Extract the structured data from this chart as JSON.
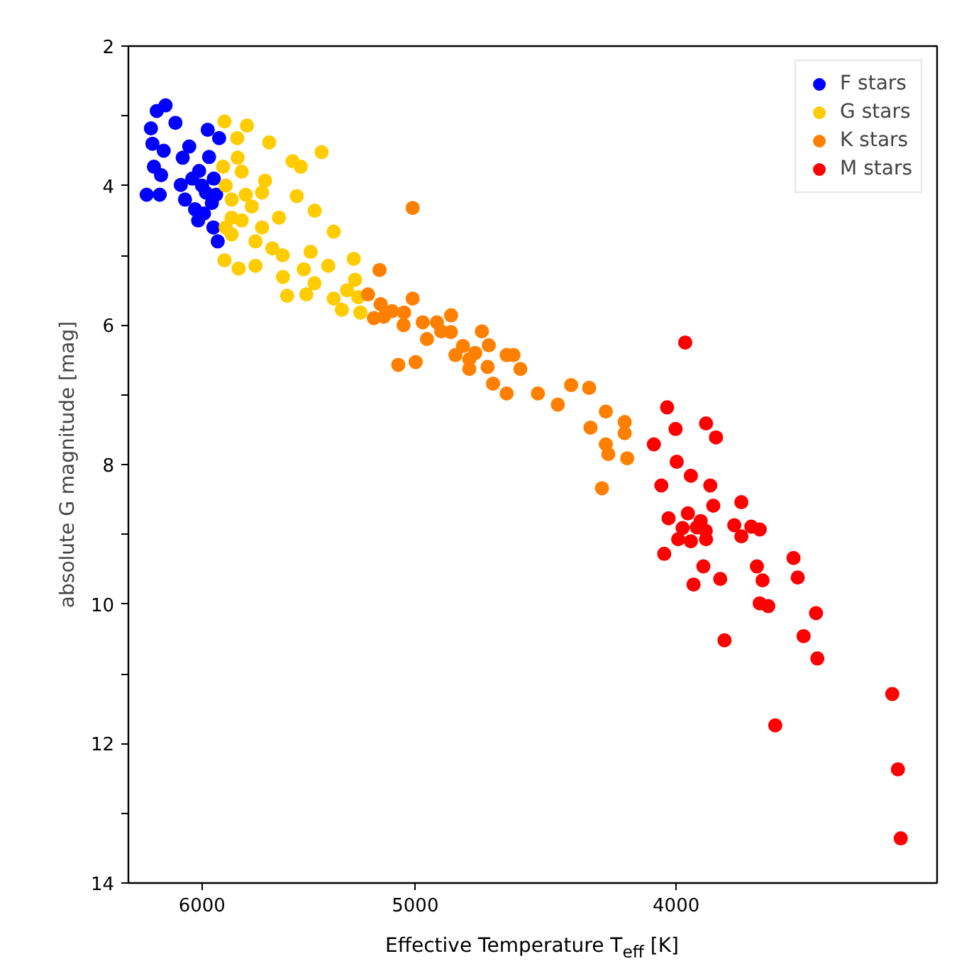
{
  "chart_data": {
    "type": "scatter",
    "xlabel": "Effective Temperature T$_{eff}$ [K]",
    "ylabel": "absolute G magnitude [mag]",
    "log": "x",
    "xlim": [
      6390,
      3200
    ],
    "xticks": [
      6000,
      5000,
      4000
    ],
    "ylim": [
      14,
      2
    ],
    "yticks": [
      2,
      {
        "value": 3,
        "label": null
      },
      4,
      {
        "value": 5,
        "label": null
      },
      6,
      {
        "value": 7,
        "label": null
      },
      8,
      {
        "value": 9,
        "label": null
      },
      10,
      {
        "value": 11,
        "label": null
      },
      12,
      {
        "value": 13,
        "label": null
      },
      14
    ],
    "grid": false,
    "legend": "top right",
    "marker": "circle",
    "series": [
      {
        "name": "F stars",
        "color": "#0000ff",
        "x": [
          6190,
          6237,
          6138,
          6268,
          5971,
          5913,
          6260,
          6066,
          6252,
          6214,
          6291,
          6221,
          6110,
          6088,
          6036,
          5942,
          5920,
          6015,
          5964,
          5928,
          6000,
          5980,
          6050,
          5950,
          6020,
          6100,
          5940,
          6200,
          5990
        ],
        "values": [
          2.85,
          2.93,
          3.1,
          3.18,
          3.2,
          3.32,
          3.4,
          3.44,
          3.73,
          3.85,
          4.13,
          4.13,
          3.99,
          4.2,
          4.34,
          4.6,
          4.8,
          3.79,
          3.59,
          4.13,
          4.0,
          4.1,
          3.9,
          4.25,
          4.5,
          3.6,
          3.9,
          3.5,
          4.4
        ]
      },
      {
        "name": "G stars",
        "color": "#ffcc00",
        "x": [
          5886,
          5774,
          5822,
          5665,
          5417,
          5893,
          5553,
          5514,
          5533,
          5449,
          5361,
          5886,
          5815,
          5732,
          5599,
          5579,
          5488,
          5361,
          5324,
          5270,
          5264,
          5240,
          5732,
          5618,
          5780,
          5685,
          5850,
          5468,
          5386,
          5880,
          5850,
          5800,
          5750,
          5700,
          5650,
          5600,
          5500,
          5450,
          5850,
          5800,
          5880,
          5300,
          5700,
          5820,
          5250
        ],
        "values": [
          3.08,
          3.14,
          3.32,
          3.38,
          3.52,
          3.73,
          3.65,
          3.73,
          4.15,
          4.36,
          4.66,
          5.07,
          5.19,
          5.15,
          5.31,
          5.58,
          5.56,
          5.62,
          5.78,
          5.05,
          5.35,
          5.82,
          4.8,
          4.46,
          4.13,
          3.93,
          4.46,
          4.95,
          5.15,
          4.0,
          4.2,
          3.8,
          4.3,
          4.6,
          4.9,
          5.0,
          5.2,
          5.4,
          4.7,
          4.5,
          4.6,
          5.5,
          4.1,
          3.6,
          5.6
        ]
      },
      {
        "name": "K stars",
        "color": "#ff8000",
        "x": [
          5011,
          5073,
          4998,
          5011,
          4849,
          4723,
          4695,
          4597,
          4570,
          4624,
          4678,
          4502,
          4426,
          4376,
          4309,
          4248,
          4304,
          4180,
          4180,
          4248,
          4239,
          4171,
          4262,
          4774,
          4831,
          4908,
          5155,
          5206,
          4890,
          4774,
          4624,
          5136,
          5048,
          4968,
          5150,
          5100,
          5050,
          4950,
          4850,
          4800,
          4750,
          5180,
          4700
        ],
        "values": [
          4.32,
          6.57,
          6.53,
          5.62,
          5.86,
          6.09,
          6.29,
          6.43,
          6.63,
          6.98,
          6.84,
          6.98,
          7.14,
          6.86,
          6.9,
          7.24,
          7.47,
          7.39,
          7.55,
          7.71,
          7.85,
          7.91,
          8.34,
          6.63,
          6.43,
          5.96,
          5.21,
          5.56,
          6.09,
          6.49,
          6.43,
          5.88,
          5.82,
          5.96,
          5.7,
          5.8,
          6.0,
          6.2,
          6.1,
          6.3,
          6.4,
          5.9,
          6.6
        ]
      },
      {
        "name": "M stars",
        "color": "#ff0000",
        "x": [
          3969,
          4031,
          4002,
          3899,
          3866,
          4077,
          3998,
          3950,
          3885,
          4051,
          3783,
          3875,
          4026,
          3978,
          3917,
          3899,
          3806,
          3751,
          3724,
          3783,
          4041,
          3993,
          3908,
          3852,
          3941,
          3733,
          3715,
          3618,
          3605,
          3724,
          3697,
          3549,
          3838,
          3587,
          3545,
          3325,
          3675,
          3309,
          3301,
          3960,
          3930,
          3950,
          3900
        ],
        "values": [
          6.25,
          7.18,
          7.49,
          7.41,
          7.61,
          7.71,
          7.96,
          8.16,
          8.3,
          8.3,
          8.54,
          8.59,
          8.77,
          8.91,
          8.81,
          9.07,
          8.87,
          8.89,
          8.93,
          9.03,
          9.28,
          9.07,
          9.46,
          9.64,
          9.72,
          9.46,
          9.66,
          9.34,
          9.62,
          9.99,
          10.03,
          10.13,
          10.52,
          10.46,
          10.78,
          11.29,
          11.74,
          12.37,
          13.36,
          8.7,
          8.9,
          9.1,
          8.95
        ]
      }
    ]
  }
}
